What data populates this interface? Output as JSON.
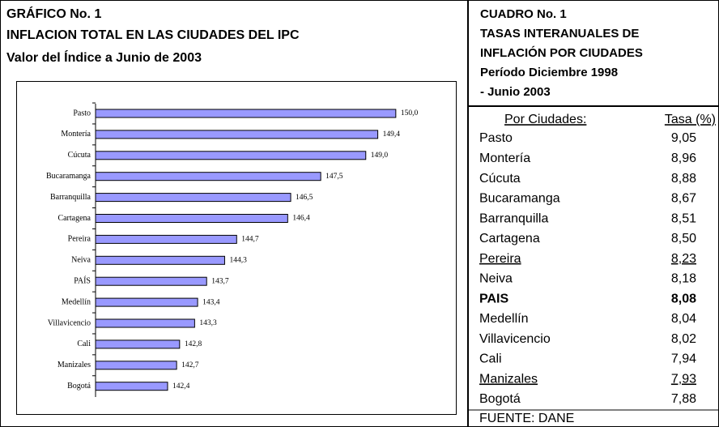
{
  "chart_data": {
    "type": "hbar",
    "title": "GRÁFICO No. 1",
    "subtitle": "INFLACION TOTAL EN LAS CIUDADES DEL IPC",
    "caption": "Valor del Índice a Junio de 2003",
    "categories": [
      "Pasto",
      "Montería",
      "Cúcuta",
      "Bucaramanga",
      "Barranquilla",
      "Cartagena",
      "Pereira",
      "Neiva",
      "PAÍS",
      "Medellín",
      "Villavicencio",
      "Cali",
      "Manizales",
      "Bogotá"
    ],
    "values": [
      150.0,
      149.4,
      149.0,
      147.5,
      146.5,
      146.4,
      144.7,
      144.3,
      143.7,
      143.4,
      143.3,
      142.8,
      142.7,
      142.4
    ],
    "value_labels": [
      "150,0",
      "149,4",
      "149,0",
      "147,5",
      "146,5",
      "146,4",
      "144,7",
      "144,3",
      "143,7",
      "143,4",
      "143,3",
      "142,8",
      "142,7",
      "142,4"
    ],
    "color": "#9999ff",
    "xlim": [
      140,
      152
    ]
  },
  "table": {
    "title_lines": [
      "CUADRO No. 1",
      "TASAS INTERANUALES DE",
      "INFLACIÓN POR CIUDADES",
      "Período Diciembre 1998",
      "- Junio 2003"
    ],
    "headers": [
      "Por Ciudades:",
      "Tasa (%)"
    ],
    "rows": [
      [
        "Pasto",
        "9,05"
      ],
      [
        "Montería",
        "8,96"
      ],
      [
        "Cúcuta",
        "8,88"
      ],
      [
        "Bucaramanga",
        "8,67"
      ],
      [
        "Barranquilla",
        "8,51"
      ],
      [
        "Cartagena",
        "8,50"
      ],
      [
        "Pereira",
        "8,23"
      ],
      [
        "Neiva",
        "8,18"
      ],
      [
        "PAIS",
        "8,08"
      ],
      [
        "Medellín",
        "8,04"
      ],
      [
        "Villavicencio",
        "8,02"
      ],
      [
        "Cali",
        "7,94"
      ],
      [
        "Manizales",
        "7,93"
      ],
      [
        "Bogotá",
        "7,88"
      ]
    ],
    "source": "FUENTE: DANE"
  }
}
